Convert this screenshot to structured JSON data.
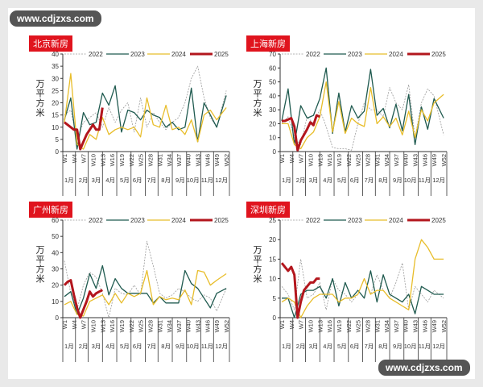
{
  "watermark_top": "www.cdjzxs.com",
  "watermark_bottom": "www.cdjzxs.com",
  "colors": {
    "2022": "#9a9a9a",
    "2023": "#1f5a4f",
    "2024": "#e8bd2a",
    "2025": "#b3161d"
  },
  "chart_data": [
    {
      "type": "line",
      "title": "北京新房",
      "ylabel": "万平方米",
      "ylim": [
        0,
        40
      ],
      "yticks": [
        0,
        5,
        10,
        15,
        20,
        25,
        30,
        35,
        40
      ],
      "weeks": [
        1,
        3,
        5,
        7,
        9,
        11,
        13,
        15,
        17,
        19,
        21,
        23,
        25,
        27,
        29,
        31,
        33,
        35,
        37,
        39,
        41,
        43,
        45,
        47,
        49,
        52
      ],
      "series": [
        {
          "name": "2022",
          "values": [
            15,
            17,
            5,
            12,
            14,
            16,
            10,
            18,
            12,
            17,
            20,
            8,
            22,
            10,
            16,
            12,
            9,
            12,
            14,
            20,
            30,
            35,
            22,
            14,
            10,
            25
          ]
        },
        {
          "name": "2023",
          "values": [
            13,
            22,
            1,
            16,
            11,
            12,
            24,
            19,
            27,
            8,
            17,
            16,
            13,
            17,
            15,
            14,
            10,
            12,
            9,
            10,
            26,
            4,
            20,
            15,
            10,
            23
          ]
        },
        {
          "name": "2024",
          "values": [
            12,
            32,
            3,
            1,
            7,
            5,
            14,
            7,
            9,
            10,
            9,
            10,
            6,
            22,
            11,
            10,
            19,
            9,
            10,
            7,
            13,
            4,
            15,
            17,
            13,
            18
          ]
        },
        {
          "name": "2025",
          "weeks": [
            1,
            2,
            3,
            4,
            5,
            6,
            7,
            8,
            9,
            10,
            11,
            12,
            13
          ],
          "values": [
            12,
            11,
            10,
            9,
            9,
            1,
            4,
            7,
            9,
            11,
            9,
            9,
            18
          ]
        }
      ]
    },
    {
      "type": "line",
      "title": "上海新房",
      "ylabel": "万平方米",
      "ylim": [
        0,
        70
      ],
      "yticks": [
        0,
        10,
        20,
        30,
        40,
        50,
        60,
        70
      ],
      "weeks": [
        1,
        3,
        5,
        7,
        9,
        11,
        13,
        15,
        17,
        19,
        21,
        23,
        25,
        27,
        29,
        31,
        33,
        35,
        37,
        39,
        41,
        43,
        45,
        47,
        49,
        52
      ],
      "series": [
        {
          "name": "2022",
          "values": [
            20,
            25,
            10,
            5,
            25,
            20,
            30,
            18,
            3,
            2,
            2,
            1,
            20,
            35,
            30,
            30,
            25,
            46,
            35,
            30,
            48,
            10,
            35,
            45,
            40,
            12
          ]
        },
        {
          "name": "2023",
          "values": [
            22,
            45,
            5,
            33,
            24,
            26,
            38,
            60,
            13,
            42,
            14,
            33,
            24,
            29,
            59,
            26,
            31,
            17,
            34,
            15,
            41,
            5,
            32,
            16,
            38,
            24
          ]
        },
        {
          "name": "2024",
          "values": [
            20,
            20,
            5,
            2,
            10,
            14,
            25,
            50,
            14,
            36,
            13,
            24,
            20,
            18,
            46,
            20,
            25,
            18,
            24,
            12,
            29,
            10,
            30,
            22,
            35,
            41
          ]
        },
        {
          "name": "2025",
          "weeks": [
            1,
            2,
            3,
            4,
            5,
            6,
            7,
            8,
            9,
            10,
            11,
            12,
            13
          ],
          "values": [
            22,
            22,
            23,
            24,
            18,
            1,
            8,
            12,
            16,
            21,
            19,
            26,
            25
          ]
        }
      ]
    },
    {
      "type": "line",
      "title": "广州新房",
      "ylabel": "万平方米",
      "ylim": [
        0,
        60
      ],
      "yticks": [
        0,
        10,
        20,
        30,
        40,
        50,
        60
      ],
      "weeks": [
        1,
        3,
        5,
        7,
        9,
        11,
        13,
        15,
        17,
        19,
        21,
        23,
        25,
        27,
        29,
        31,
        33,
        35,
        37,
        39,
        41,
        43,
        45,
        47,
        49,
        52
      ],
      "series": [
        {
          "name": "2022",
          "values": [
            35,
            15,
            5,
            20,
            28,
            25,
            15,
            0,
            18,
            15,
            14,
            20,
            14,
            47,
            32,
            15,
            12,
            14,
            18,
            16,
            12,
            10,
            14,
            12,
            4,
            18
          ]
        },
        {
          "name": "2023",
          "values": [
            13,
            16,
            2,
            12,
            27,
            18,
            32,
            14,
            24,
            18,
            15,
            15,
            15,
            15,
            9,
            13,
            9,
            9,
            9,
            29,
            21,
            18,
            12,
            6,
            15,
            18
          ]
        },
        {
          "name": "2024",
          "values": [
            8,
            10,
            2,
            1,
            10,
            12,
            14,
            8,
            15,
            9,
            15,
            13,
            15,
            29,
            8,
            13,
            11,
            12,
            11,
            17,
            8,
            29,
            28,
            20,
            23,
            27
          ]
        },
        {
          "name": "2025",
          "weeks": [
            1,
            2,
            3,
            4,
            5,
            6,
            7,
            8,
            9,
            10,
            11,
            12,
            13
          ],
          "values": [
            20,
            22,
            23,
            14,
            6,
            0,
            5,
            10,
            16,
            13,
            15,
            16,
            17
          ]
        }
      ]
    },
    {
      "type": "line",
      "title": "深圳新房",
      "ylabel": "万平方米",
      "ylim": [
        0,
        25
      ],
      "yticks": [
        0,
        5,
        10,
        15,
        20,
        25
      ],
      "weeks": [
        1,
        3,
        5,
        7,
        9,
        11,
        13,
        15,
        17,
        19,
        21,
        23,
        25,
        27,
        29,
        31,
        33,
        35,
        37,
        39,
        41,
        43,
        45,
        47,
        49,
        52
      ],
      "series": [
        {
          "name": "2022",
          "values": [
            8,
            6,
            2,
            15,
            5,
            6,
            9,
            2,
            10,
            7,
            6,
            4,
            6,
            10,
            6,
            11,
            7,
            5,
            9,
            14,
            2,
            8,
            6,
            4,
            7,
            5
          ]
        },
        {
          "name": "2023",
          "values": [
            5,
            5,
            0,
            6,
            7,
            7,
            8,
            5,
            10,
            3,
            9,
            5,
            7,
            5,
            12,
            4,
            11,
            6,
            5,
            4,
            6,
            1,
            8,
            7,
            6,
            6
          ]
        },
        {
          "name": "2024",
          "values": [
            4,
            5,
            4,
            0,
            3,
            5,
            6,
            6,
            6,
            4,
            5,
            5,
            6,
            10,
            6,
            7,
            7,
            5,
            4,
            3,
            2,
            15,
            20,
            18,
            15,
            15
          ]
        },
        {
          "name": "2025",
          "weeks": [
            1,
            2,
            3,
            4,
            5,
            6,
            7,
            8,
            9,
            10,
            11,
            12,
            13
          ],
          "values": [
            14,
            13,
            12,
            13,
            11,
            0,
            4,
            7,
            8,
            9,
            9,
            10,
            10
          ]
        }
      ]
    }
  ],
  "xticks": [
    "W1",
    "W4",
    "W7",
    "W10",
    "W13",
    "W16",
    "W19",
    "W22",
    "W25",
    "W28",
    "W31",
    "W34",
    "W37",
    "W40",
    "W43",
    "W46",
    "W49",
    "W52"
  ],
  "months": [
    {
      "label": "1月",
      "week": 2.5
    },
    {
      "label": "2月",
      "week": 7
    },
    {
      "label": "3月",
      "week": 11
    },
    {
      "label": "4月",
      "week": 15.5
    },
    {
      "label": "5月",
      "week": 20
    },
    {
      "label": "6月",
      "week": 24
    },
    {
      "label": "7月",
      "week": 28.5
    },
    {
      "label": "8月",
      "week": 33
    },
    {
      "label": "9月",
      "week": 37.5
    },
    {
      "label": "10月",
      "week": 41.5
    },
    {
      "label": "11月",
      "week": 46
    },
    {
      "label": "12月",
      "week": 50.5
    }
  ],
  "month_bounds": [
    0.5,
    4.5,
    8.5,
    13,
    17.5,
    22,
    26.5,
    30.5,
    35,
    39.5,
    44,
    48,
    53
  ]
}
